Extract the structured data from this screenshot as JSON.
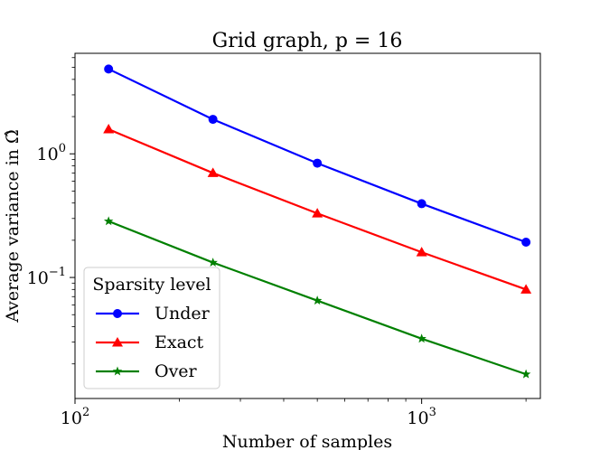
{
  "chart_data": {
    "type": "line",
    "title": "Grid graph, p = 16",
    "xlabel": "Number of samples",
    "ylabel": "Average variance in Ω̂",
    "xscale": "log",
    "yscale": "log",
    "xlim": [
      100,
      2200
    ],
    "ylim": [
      0.0105,
      6.5
    ],
    "x": [
      125,
      250,
      500,
      1000,
      2000
    ],
    "x_ticks": [
      {
        "base": "10",
        "exp": "2",
        "value": 100
      },
      {
        "base": "10",
        "exp": "3",
        "value": 1000
      }
    ],
    "y_ticks": [
      {
        "base": "10",
        "exp": "0",
        "value": 1
      },
      {
        "base": "10",
        "exp": "−1",
        "value": 0.1
      }
    ],
    "legend_title": "Sparsity level",
    "legend_position": "lower-left",
    "series": [
      {
        "name": "Under",
        "color": "#0000ff",
        "marker": "circle",
        "values": [
          4.85,
          1.9,
          0.84,
          0.395,
          0.193
        ]
      },
      {
        "name": "Exact",
        "color": "#ff0000",
        "marker": "triangle",
        "values": [
          1.58,
          0.7,
          0.33,
          0.16,
          0.08
        ]
      },
      {
        "name": "Over",
        "color": "#008000",
        "marker": "star",
        "values": [
          0.285,
          0.132,
          0.065,
          0.032,
          0.0165
        ]
      }
    ]
  }
}
